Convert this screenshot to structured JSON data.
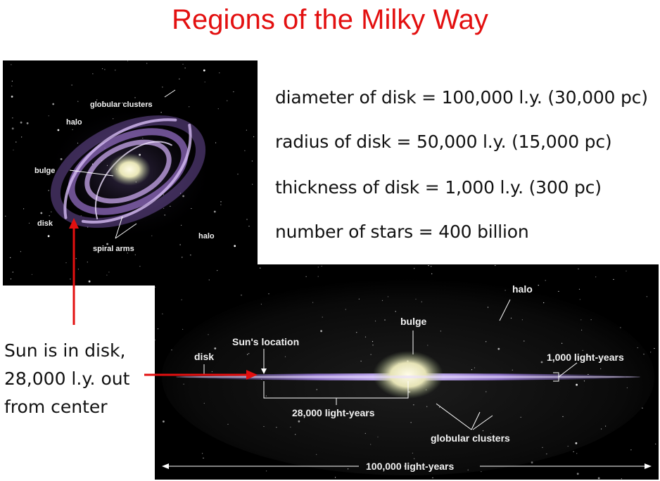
{
  "title": "Regions of the Milky Way",
  "facts": [
    "diameter of disk = 100,000 l.y. (30,000 pc)",
    "radius of disk = 50,000 l.y. (15,000 pc)",
    "thickness of disk = 1,000 l.y. (300 pc)",
    "number of stars = 400 billion"
  ],
  "face_on": {
    "labels": {
      "globular_clusters": "globular clusters",
      "halo_top": "halo",
      "bulge": "bulge",
      "disk": "disk",
      "spiral_arms": "spiral arms",
      "halo_right": "halo"
    }
  },
  "edge_on": {
    "labels": {
      "halo": "halo",
      "bulge": "bulge",
      "suns_location": "Sun's location",
      "disk": "disk",
      "thickness": "1,000 light-years",
      "sun_distance": "28,000 light-years",
      "globular_clusters": "globular clusters",
      "diameter": "100,000 light-years"
    }
  },
  "sun_note": [
    "Sun is in disk,",
    "28,000 l.y. out",
    "from center"
  ],
  "colors": {
    "title": "#e31010",
    "arrow": "#e31010",
    "panel_bg": "#000000",
    "arm": "#b58ee0"
  }
}
